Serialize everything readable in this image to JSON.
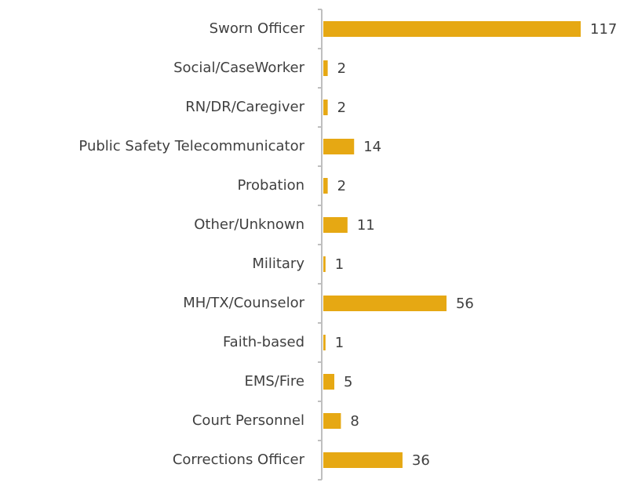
{
  "chart_data": {
    "type": "bar",
    "categories": [
      "Sworn Officer",
      "Social/CaseWorker",
      "RN/DR/Caregiver",
      "Public Safety Telecommunicator",
      "Probation",
      "Other/Unknown",
      "Military",
      "MH/TX/Counselor",
      "Faith-based",
      "EMS/Fire",
      "Court Personnel",
      "Corrections Officer"
    ],
    "values": [
      117,
      2,
      2,
      14,
      2,
      11,
      1,
      56,
      1,
      5,
      8,
      36
    ],
    "color": "#e6a813"
  }
}
